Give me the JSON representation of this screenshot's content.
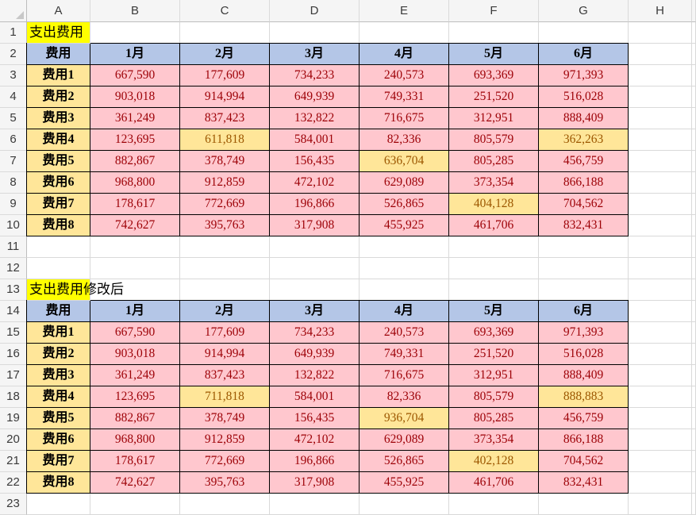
{
  "column_headers": [
    "A",
    "B",
    "C",
    "D",
    "E",
    "F",
    "G",
    "H"
  ],
  "row_numbers": [
    "1",
    "2",
    "3",
    "4",
    "5",
    "6",
    "7",
    "8",
    "9",
    "10",
    "11",
    "12",
    "13",
    "14",
    "15",
    "16",
    "17",
    "18",
    "19",
    "20",
    "21",
    "22",
    "23"
  ],
  "colors": {
    "title_fill": "#FFFF00",
    "header_fill": "#B4C6E7",
    "label_fill": "#FFE699",
    "value_fill": "#FFC7CE",
    "value_text": "#9C0006",
    "highlight_fill": "#FFE699",
    "highlight_text": "#9C5700"
  },
  "tables": [
    {
      "title": "支出费用",
      "header": [
        "费用",
        "1月",
        "2月",
        "3月",
        "4月",
        "5月",
        "6月"
      ],
      "rows": [
        {
          "label": "费用1",
          "values": [
            "667,590",
            "177,609",
            "734,233",
            "240,573",
            "693,369",
            "971,393"
          ]
        },
        {
          "label": "费用2",
          "values": [
            "903,018",
            "914,994",
            "649,939",
            "749,331",
            "251,520",
            "516,028"
          ]
        },
        {
          "label": "费用3",
          "values": [
            "361,249",
            "837,423",
            "132,822",
            "716,675",
            "312,951",
            "888,409"
          ]
        },
        {
          "label": "费用4",
          "values": [
            "123,695",
            "611,818",
            "584,001",
            "82,336",
            "805,579",
            "362,263"
          ],
          "highlight": [
            false,
            true,
            false,
            false,
            false,
            true
          ]
        },
        {
          "label": "费用5",
          "values": [
            "882,867",
            "378,749",
            "156,435",
            "636,704",
            "805,285",
            "456,759"
          ],
          "highlight": [
            false,
            false,
            false,
            true,
            false,
            false
          ]
        },
        {
          "label": "费用6",
          "values": [
            "968,800",
            "912,859",
            "472,102",
            "629,089",
            "373,354",
            "866,188"
          ]
        },
        {
          "label": "费用7",
          "values": [
            "178,617",
            "772,669",
            "196,866",
            "526,865",
            "404,128",
            "704,562"
          ],
          "highlight": [
            false,
            false,
            false,
            false,
            true,
            false
          ]
        },
        {
          "label": "费用8",
          "values": [
            "742,627",
            "395,763",
            "317,908",
            "455,925",
            "461,706",
            "832,431"
          ]
        }
      ]
    },
    {
      "title": "支出费用修改后",
      "header": [
        "费用",
        "1月",
        "2月",
        "3月",
        "4月",
        "5月",
        "6月"
      ],
      "rows": [
        {
          "label": "费用1",
          "values": [
            "667,590",
            "177,609",
            "734,233",
            "240,573",
            "693,369",
            "971,393"
          ]
        },
        {
          "label": "费用2",
          "values": [
            "903,018",
            "914,994",
            "649,939",
            "749,331",
            "251,520",
            "516,028"
          ]
        },
        {
          "label": "费用3",
          "values": [
            "361,249",
            "837,423",
            "132,822",
            "716,675",
            "312,951",
            "888,409"
          ]
        },
        {
          "label": "费用4",
          "values": [
            "123,695",
            "711,818",
            "584,001",
            "82,336",
            "805,579",
            "888,883"
          ],
          "highlight": [
            false,
            true,
            false,
            false,
            false,
            true
          ]
        },
        {
          "label": "费用5",
          "values": [
            "882,867",
            "378,749",
            "156,435",
            "936,704",
            "805,285",
            "456,759"
          ],
          "highlight": [
            false,
            false,
            false,
            true,
            false,
            false
          ]
        },
        {
          "label": "费用6",
          "values": [
            "968,800",
            "912,859",
            "472,102",
            "629,089",
            "373,354",
            "866,188"
          ]
        },
        {
          "label": "费用7",
          "values": [
            "178,617",
            "772,669",
            "196,866",
            "526,865",
            "402,128",
            "704,562"
          ],
          "highlight": [
            false,
            false,
            false,
            false,
            true,
            false
          ]
        },
        {
          "label": "费用8",
          "values": [
            "742,627",
            "395,763",
            "317,908",
            "455,925",
            "461,706",
            "832,431"
          ]
        }
      ]
    }
  ]
}
